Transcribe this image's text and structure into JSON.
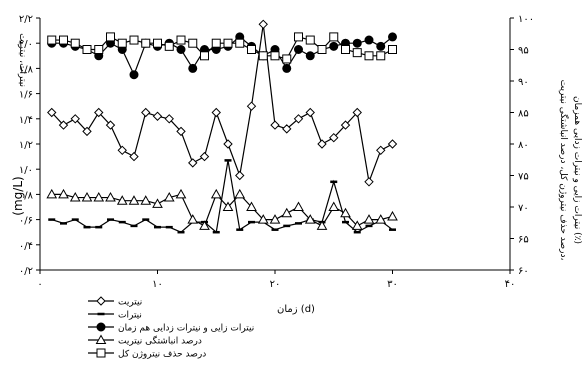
{
  "chart_data": {
    "type": "line",
    "xlabel": "زمان (d)",
    "ylabel_left": "نیترات، نیتریت",
    "ylabel_left_unit": "(mg/L)",
    "ylabel_right_line1": "درصد حذف نیتروژن کل، درصد انباشتگی نیتریت،",
    "ylabel_right_line2": "نیترات زایی و نیترات زدایی همزمان (٪)",
    "xlim": [
      0,
      40
    ],
    "ylim_left": [
      0.2,
      2.2
    ],
    "ylim_right": [
      60,
      100
    ],
    "x_ticks": [
      0,
      10,
      20,
      30,
      40
    ],
    "x_tick_labels": [
      "۰",
      "۱۰",
      "۲۰",
      "۳۰",
      "۴۰"
    ],
    "y_left_ticks": [
      0.2,
      0.4,
      0.6,
      0.8,
      1.0,
      1.2,
      1.4,
      1.6,
      1.8,
      2.0,
      2.2
    ],
    "y_left_tick_labels": [
      "۰/۲",
      "۰/۴",
      "۰/۶",
      "۰/۸",
      "۱/۰",
      "۱/۲",
      "۱/۴",
      "۱/۶",
      "۱/۸",
      "۲/۰",
      "۲/۲"
    ],
    "y_right_ticks": [
      60,
      65,
      70,
      75,
      80,
      85,
      90,
      95,
      100
    ],
    "y_right_tick_labels": [
      "۶۰",
      "۶۵",
      "۷۰",
      "۷۵",
      "۸۰",
      "۸۵",
      "۹۰",
      "۹۵",
      "۱۰۰"
    ],
    "legend_position": "bottom-left",
    "series": [
      {
        "name": "نیتریت",
        "axis": "left",
        "marker": "diamond",
        "x": [
          1,
          2,
          3,
          4,
          5,
          6,
          7,
          8,
          9,
          10,
          11,
          12,
          13,
          14,
          15,
          16,
          17,
          18,
          19,
          20,
          21,
          22,
          23,
          24,
          25,
          26,
          27,
          28,
          29,
          30
        ],
        "y": [
          1.45,
          1.35,
          1.4,
          1.3,
          1.45,
          1.35,
          1.15,
          1.1,
          1.45,
          1.42,
          1.4,
          1.3,
          1.05,
          1.1,
          1.45,
          1.2,
          0.95,
          1.5,
          2.15,
          1.35,
          1.32,
          1.4,
          1.45,
          1.2,
          1.25,
          1.35,
          1.45,
          0.9,
          1.15,
          1.2
        ]
      },
      {
        "name": "نیترات",
        "axis": "left",
        "marker": "dash",
        "x": [
          1,
          2,
          3,
          4,
          5,
          6,
          7,
          8,
          9,
          10,
          11,
          12,
          13,
          14,
          15,
          16,
          17,
          18,
          19,
          20,
          21,
          22,
          23,
          24,
          25,
          26,
          27,
          28,
          29,
          30
        ],
        "y": [
          0.6,
          0.57,
          0.6,
          0.54,
          0.54,
          0.6,
          0.58,
          0.55,
          0.6,
          0.54,
          0.54,
          0.5,
          0.58,
          0.58,
          0.5,
          1.07,
          0.52,
          0.58,
          0.58,
          0.52,
          0.55,
          0.57,
          0.6,
          0.58,
          0.9,
          0.58,
          0.5,
          0.55,
          0.59,
          0.52
        ]
      },
      {
        "name": "نیترات زایی و نیترات زدایی هم زمان",
        "axis": "right",
        "marker": "filled-circle",
        "x": [
          1,
          2,
          3,
          4,
          5,
          6,
          7,
          8,
          9,
          10,
          11,
          12,
          13,
          14,
          15,
          16,
          17,
          18,
          19,
          20,
          21,
          22,
          23,
          24,
          25,
          26,
          27,
          28,
          29,
          30
        ],
        "y": [
          96,
          96,
          95.5,
          95,
          94,
          96,
          95,
          91,
          96,
          95.5,
          96,
          95,
          92,
          95,
          95,
          95.5,
          97,
          95.5,
          94,
          95,
          92,
          95,
          94,
          95,
          95.5,
          96,
          96,
          96.5,
          95.5,
          97
        ]
      },
      {
        "name": "درصد انباشتگی نیتریت",
        "axis": "right",
        "marker": "open-triangle",
        "x": [
          1,
          2,
          3,
          4,
          5,
          6,
          7,
          8,
          9,
          10,
          11,
          12,
          13,
          14,
          15,
          16,
          17,
          18,
          19,
          20,
          21,
          22,
          23,
          24,
          25,
          26,
          27,
          28,
          29,
          30
        ],
        "y": [
          72,
          72,
          71.5,
          71.5,
          71.5,
          71.5,
          71,
          71,
          71,
          70.5,
          71.5,
          72,
          68,
          67,
          72,
          70,
          72,
          70,
          68,
          68,
          69,
          70,
          68,
          67,
          70,
          69,
          67,
          68,
          68,
          68.5
        ]
      },
      {
        "name": "درصد حذف نیتروژن کل",
        "axis": "right",
        "marker": "open-square",
        "x": [
          1,
          2,
          3,
          4,
          5,
          6,
          7,
          8,
          9,
          10,
          11,
          12,
          13,
          14,
          15,
          16,
          17,
          18,
          19,
          20,
          21,
          22,
          23,
          24,
          25,
          26,
          27,
          28,
          29,
          30
        ],
        "y": [
          96.5,
          96.5,
          96,
          95,
          95,
          97,
          96,
          96.5,
          96,
          96,
          95.5,
          96.5,
          96,
          94,
          96,
          96,
          96,
          95,
          94,
          94,
          93.5,
          97,
          96.5,
          95,
          97,
          95,
          94.5,
          94,
          94,
          95
        ]
      }
    ]
  }
}
